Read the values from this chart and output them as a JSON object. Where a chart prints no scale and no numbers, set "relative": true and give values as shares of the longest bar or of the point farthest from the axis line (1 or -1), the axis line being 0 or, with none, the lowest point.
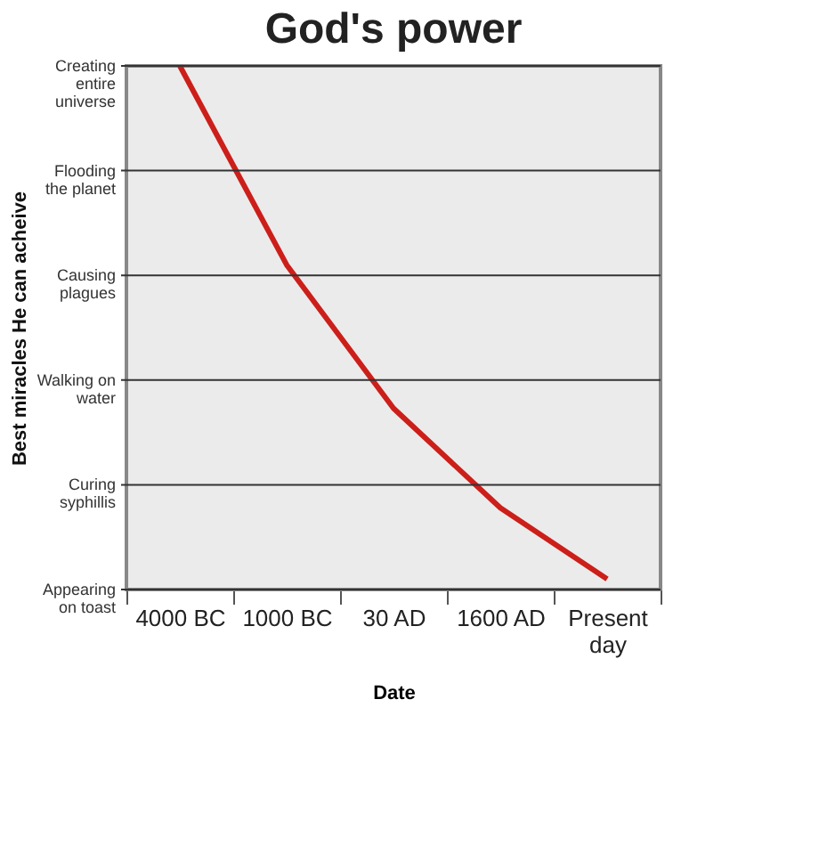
{
  "chart_data": {
    "type": "line",
    "title": "God's power",
    "xlabel": "Date",
    "ylabel": "Best miracles He can acheive",
    "categories": [
      "4000 BC",
      "1000 BC",
      "30 AD",
      "1600 AD",
      "Present day"
    ],
    "series": [
      {
        "color": "#cc1f1a",
        "values": [
          1,
          0.62,
          0.346,
          0.156,
          0.02
        ]
      }
    ],
    "relative": true,
    "ref_lines": [
      {
        "axis": "y",
        "value": 0,
        "label": "Appearing on toast"
      },
      {
        "axis": "y",
        "value": 0.2,
        "label": "Curing syphillis"
      },
      {
        "axis": "y",
        "value": 0.4,
        "label": "Walking on water"
      },
      {
        "axis": "y",
        "value": 0.6,
        "label": "Causing plagues"
      },
      {
        "axis": "y",
        "value": 0.8,
        "label": "Flooding the planet"
      },
      {
        "axis": "y",
        "value": 1,
        "label": "Creating entire universe"
      }
    ],
    "legend": false,
    "marker": "none",
    "line_style": "solid"
  }
}
